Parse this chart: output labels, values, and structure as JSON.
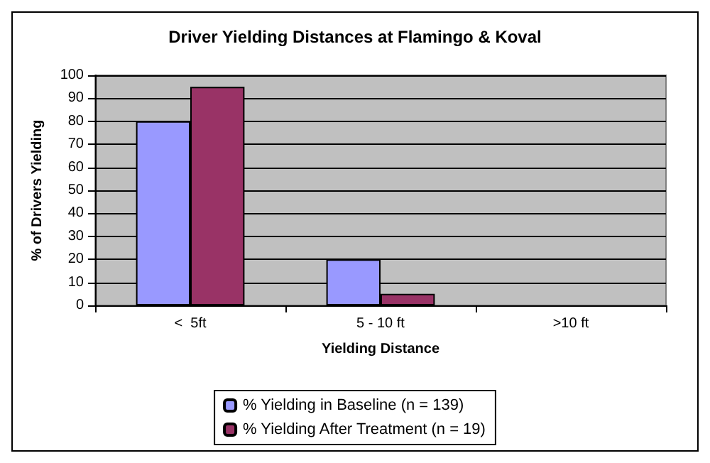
{
  "chart_data": {
    "type": "bar",
    "title": "Driver Yielding Distances at Flamingo & Koval",
    "xlabel": "Yielding Distance",
    "ylabel": "% of Drivers Yielding",
    "categories": [
      "<  5ft",
      "5 - 10 ft",
      ">10 ft"
    ],
    "series": [
      {
        "name": "% Yielding in Baseline (n = 139)",
        "color": "#9999ff",
        "values": [
          80,
          20,
          0
        ]
      },
      {
        "name": "% Yielding After Treatment (n = 19)",
        "color": "#993366",
        "values": [
          95,
          5,
          0
        ]
      }
    ],
    "ylim": [
      0,
      100
    ],
    "yticks": [
      0,
      10,
      20,
      30,
      40,
      50,
      60,
      70,
      80,
      90,
      100
    ],
    "grid": "y",
    "legend": "bottom"
  }
}
